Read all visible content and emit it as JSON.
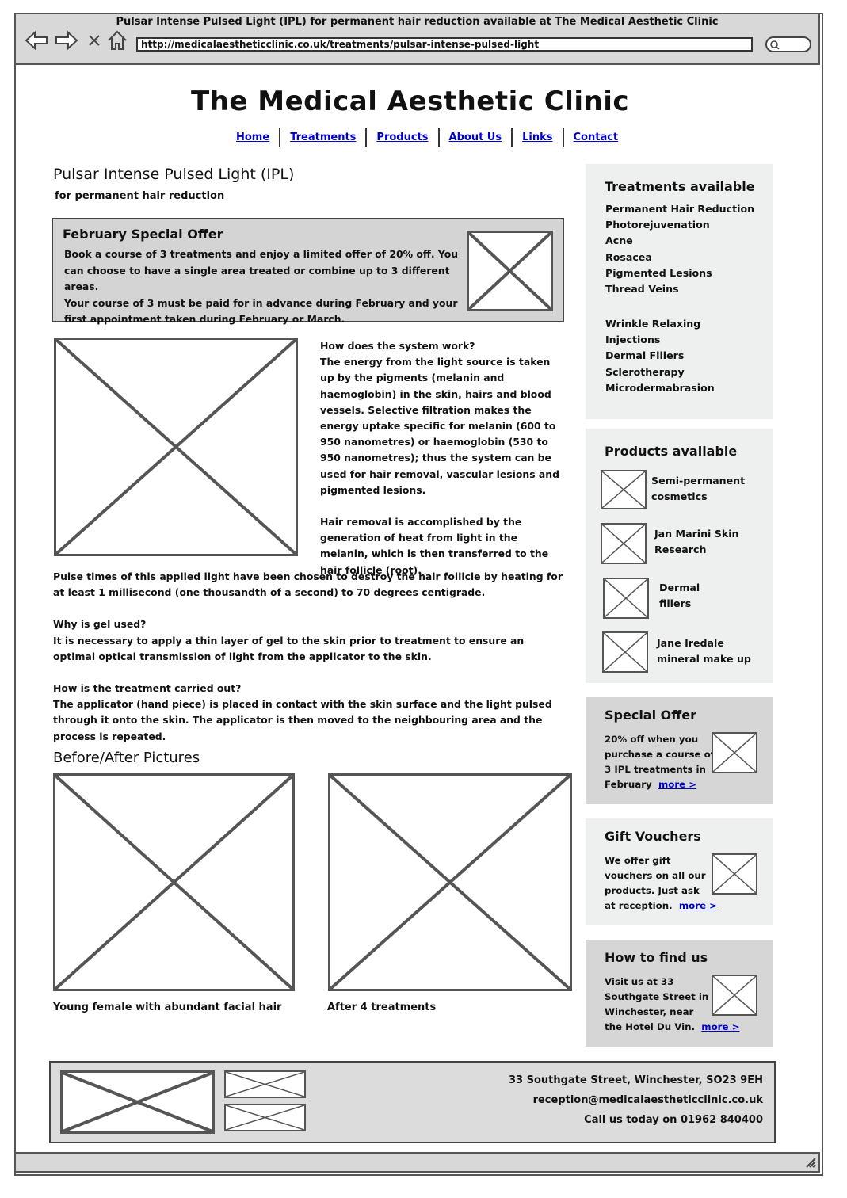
{
  "window": {
    "title": "Pulsar Intense Pulsed Light (IPL) for permanent hair reduction available at The Medical Aesthetic Clinic",
    "url": "http://medicalaestheticclinic.co.uk/treatments/pulsar-intense-pulsed-light",
    "icons": [
      "back-arrow-icon",
      "forward-arrow-icon",
      "close-icon",
      "home-icon",
      "search-icon",
      "resize-grip-icon"
    ]
  },
  "site": {
    "title": "The Medical Aesthetic Clinic"
  },
  "nav": {
    "items": [
      "Home",
      "Treatments",
      "Products",
      "About Us",
      "Links",
      "Contact"
    ]
  },
  "page": {
    "heading": "Pulsar Intense Pulsed Light (IPL)",
    "subtitle": "for permanent hair reduction"
  },
  "offer": {
    "title": "February Special Offer",
    "para1": "Book a course of 3 treatments and enjoy a limited offer of 20% off. You can choose to have a single area treated or combine up to 3 different areas.",
    "para2": "Your course of 3 must be paid for in advance during February and your first appointment taken during February or March."
  },
  "content": {
    "q1": "How does the system work?",
    "a1": "The energy from the light source is taken up by the pigments (melanin and haemoglobin) in the skin, hairs and blood vessels. Selective filtration makes the energy uptake specific for melanin (600 to 950 nanometres) or haemoglobin (530 to 950 nanometres); thus the system can be used for hair removal, vascular lesions and pigmented lesions.",
    "p2": "Hair removal is accomplished by the generation of heat from light in the melanin, which is then transferred to the hair follicle (root).",
    "p3": "Pulse times of this applied light have been chosen to destroy the hair follicle by heating for at least 1 millisecond (one thousandth of a second) to 70 degrees centigrade.",
    "q2": "Why is gel used?",
    "a2": "It is necessary to apply a thin layer of gel to the skin prior to treatment to ensure an optimal optical transmission of light from the applicator to the skin.",
    "q3": "How is the treatment carried out?",
    "a3": "The applicator (hand piece) is placed in contact with the skin surface and the light pulsed through it onto the skin. The applicator is then moved to the neighbouring area and the process is repeated."
  },
  "before_after": {
    "heading": "Before/After Pictures",
    "before_caption": "Young female with abundant facial hair",
    "after_caption": "After 4 treatments"
  },
  "sidebar": {
    "treatments": {
      "title": "Treatments available",
      "items": [
        "Permanent Hair Reduction",
        "Photorejuvenation",
        "Acne",
        "Rosacea",
        "Pigmented Lesions",
        "Thread Veins"
      ],
      "items2": [
        "Wrinkle Relaxing",
        "Injections",
        "Dermal Fillers",
        "Sclerotherapy",
        "Microdermabrasion"
      ]
    },
    "products": {
      "title": "Products available",
      "items": [
        {
          "line1": "Semi-permanent",
          "line2": "cosmetics"
        },
        {
          "line1": "Jan Marini Skin",
          "line2": "Research"
        },
        {
          "line1": "Dermal",
          "line2": "fillers"
        },
        {
          "line1": "Jane Iredale",
          "line2": "mineral make up"
        }
      ]
    },
    "special_offer": {
      "title": "Special Offer",
      "lines": [
        "20% off when you",
        "purchase a course of",
        "3 IPL treatments in",
        "February"
      ],
      "more": "more >"
    },
    "gift_vouchers": {
      "title": "Gift Vouchers",
      "lines": [
        "We offer gift",
        "vouchers on all our",
        "products. Just ask",
        "at reception."
      ],
      "more": "more >"
    },
    "find_us": {
      "title": "How to find us",
      "lines": [
        "Visit us at 33",
        "Southgate Street in",
        "Winchester, near",
        "the Hotel Du Vin."
      ],
      "more": "more >"
    }
  },
  "footer": {
    "address": "33 Southgate Street, Winchester, SO23 9EH",
    "email": "reception@medicalaestheticclinic.co.uk",
    "phone": "Call us today on 01962 840400"
  },
  "colors": {
    "link": "#0000cc",
    "chrome": "#d8d8d8",
    "sidebar_light": "#eef0ef",
    "sidebar_dark": "#d6d6d6"
  }
}
